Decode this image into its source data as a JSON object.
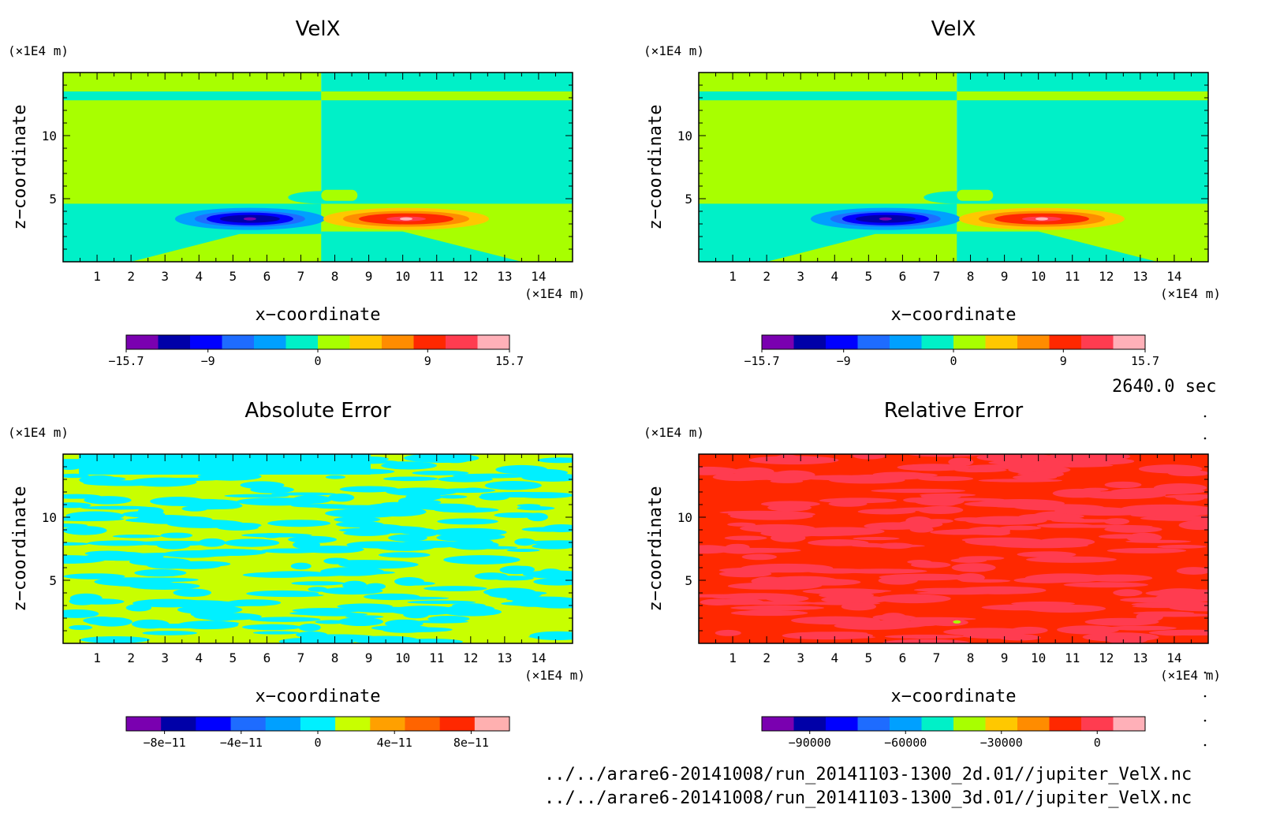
{
  "time_label": "2640.0 sec",
  "files": [
    "../../arare6-20141008/run_20141103-1300_2d.01//jupiter_VelX.nc",
    "../../arare6-20141008/run_20141103-1300_3d.01//jupiter_VelX.nc"
  ],
  "chart_data": [
    {
      "type": "heatmap",
      "title": "VelX",
      "xlabel": "x−coordinate",
      "ylabel": "z−coordinate",
      "x_unit": "(×1E4 m)",
      "y_unit": "(×1E4 m)",
      "xlim": [
        0,
        15
      ],
      "ylim": [
        0,
        15
      ],
      "x_ticks": [
        "1",
        "2",
        "3",
        "4",
        "5",
        "6",
        "7",
        "8",
        "9",
        "10",
        "11",
        "12",
        "13",
        "14"
      ],
      "y_ticks": [
        "5",
        "10"
      ],
      "colorbar": {
        "colors": [
          "#7a00b0",
          "#0000a8",
          "#0000ff",
          "#1e6cff",
          "#00a0ff",
          "#00f0c8",
          "#a8ff00",
          "#ffc800",
          "#ff8c00",
          "#ff2800",
          "#ff3c50",
          "#ffb0b8"
        ],
        "tick_labels": [
          "−15.7",
          "−9",
          "0",
          "9",
          "15.7"
        ],
        "range": [
          -15.7,
          15.7
        ]
      },
      "field": "split_jet"
    },
    {
      "type": "heatmap",
      "title": "VelX",
      "xlabel": "x−coordinate",
      "ylabel": "z−coordinate",
      "x_unit": "(×1E4 m)",
      "y_unit": "(×1E4 m)",
      "xlim": [
        0,
        15
      ],
      "ylim": [
        0,
        15
      ],
      "x_ticks": [
        "1",
        "2",
        "3",
        "4",
        "5",
        "6",
        "7",
        "8",
        "9",
        "10",
        "11",
        "12",
        "13",
        "14"
      ],
      "y_ticks": [
        "5",
        "10"
      ],
      "colorbar": {
        "colors": [
          "#7a00b0",
          "#0000a8",
          "#0000ff",
          "#1e6cff",
          "#00a0ff",
          "#00f0c8",
          "#a8ff00",
          "#ffc800",
          "#ff8c00",
          "#ff2800",
          "#ff3c50",
          "#ffb0b8"
        ],
        "tick_labels": [
          "−15.7",
          "−9",
          "0",
          "9",
          "15.7"
        ],
        "range": [
          -15.7,
          15.7
        ]
      },
      "field": "split_jet"
    },
    {
      "type": "heatmap",
      "title": "Absolute Error",
      "xlabel": "x−coordinate",
      "ylabel": "z−coordinate",
      "x_unit": "(×1E4 m)",
      "y_unit": "(×1E4 m)",
      "xlim": [
        0,
        15
      ],
      "ylim": [
        0,
        15
      ],
      "x_ticks": [
        "1",
        "2",
        "3",
        "4",
        "5",
        "6",
        "7",
        "8",
        "9",
        "10",
        "11",
        "12",
        "13",
        "14"
      ],
      "y_ticks": [
        "5",
        "10"
      ],
      "colorbar": {
        "colors": [
          "#7a00b0",
          "#0000a8",
          "#0000ff",
          "#1e6cff",
          "#00a0ff",
          "#00f0ff",
          "#c8ff00",
          "#ffa000",
          "#ff6400",
          "#ff2800",
          "#ffb0b0"
        ],
        "tick_labels": [
          "−8e−11",
          "−4e−11",
          "0",
          "4e−11",
          "8e−11"
        ],
        "range": [
          -1e-10,
          1e-10
        ]
      },
      "field": "noise_cyan_yellow"
    },
    {
      "type": "heatmap",
      "title": "Relative Error",
      "xlabel": "x−coordinate",
      "ylabel": "z−coordinate",
      "x_unit": "(×1E4 m)",
      "y_unit": "(×1E4 m)",
      "xlim": [
        0,
        15
      ],
      "ylim": [
        0,
        15
      ],
      "x_ticks": [
        "1",
        "2",
        "3",
        "4",
        "5",
        "6",
        "7",
        "8",
        "9",
        "10",
        "11",
        "12",
        "13",
        "14"
      ],
      "y_ticks": [
        "5",
        "10"
      ],
      "colorbar": {
        "colors": [
          "#7a00b0",
          "#0000a8",
          "#0000ff",
          "#1e6cff",
          "#00a0ff",
          "#00f0c8",
          "#a8ff00",
          "#ffc800",
          "#ff8c00",
          "#ff2800",
          "#ff3c50",
          "#ffb0b8"
        ],
        "tick_labels": [
          "−90000",
          "−60000",
          "−30000",
          "0"
        ],
        "range": [
          -105000,
          15000
        ]
      },
      "field": "noise_red"
    }
  ]
}
